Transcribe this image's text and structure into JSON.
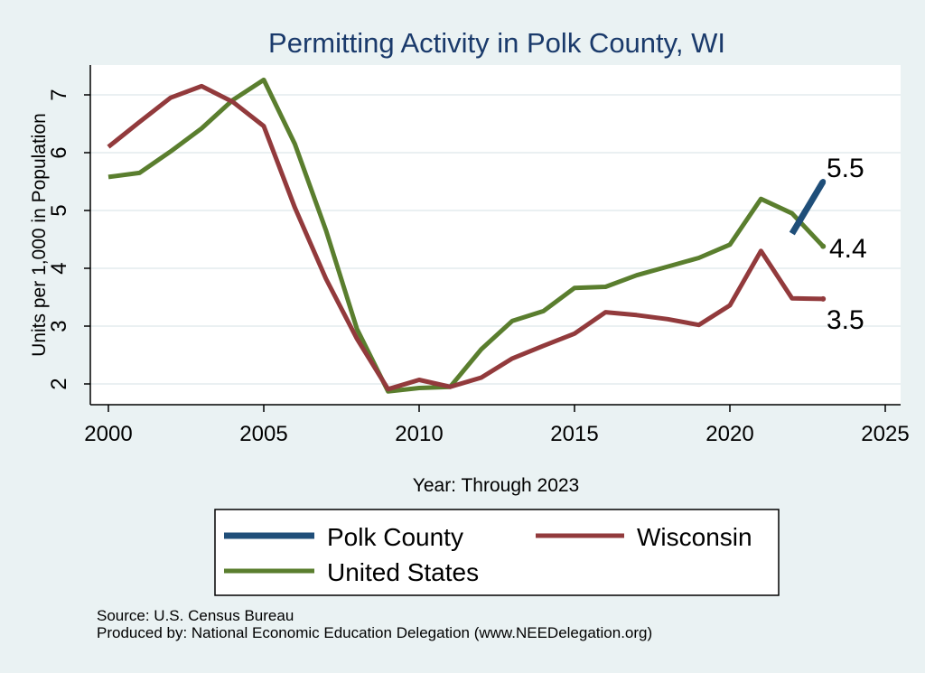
{
  "chart_data": {
    "type": "line",
    "title": "Permitting Activity in Polk County, WI",
    "xlabel": "Year: Through 2023",
    "ylabel": "Units per 1,000 in Population",
    "xlim": [
      2000,
      2025
    ],
    "ylim": [
      2,
      7
    ],
    "x_ticks": [
      2000,
      2005,
      2010,
      2015,
      2020,
      2025
    ],
    "y_ticks": [
      2,
      3,
      4,
      5,
      6,
      7
    ],
    "grid": true,
    "legend_position": "bottom",
    "series": [
      {
        "name": "Polk County",
        "color": "#1f4e79",
        "x": [
          2022,
          2023
        ],
        "values": [
          4.6,
          5.5
        ]
      },
      {
        "name": "Wisconsin",
        "color": "#923a3c",
        "x": [
          2000,
          2001,
          2002,
          2003,
          2004,
          2005,
          2006,
          2007,
          2008,
          2009,
          2010,
          2011,
          2012,
          2013,
          2014,
          2015,
          2016,
          2017,
          2018,
          2019,
          2020,
          2021,
          2022,
          2023
        ],
        "values": [
          6.1,
          6.53,
          6.95,
          7.15,
          6.88,
          6.46,
          5.05,
          3.82,
          2.78,
          1.91,
          2.07,
          1.95,
          2.11,
          2.44,
          2.66,
          2.87,
          3.24,
          3.19,
          3.12,
          3.02,
          3.36,
          4.3,
          3.48,
          3.47
        ]
      },
      {
        "name": "United States",
        "color": "#5a7e2e",
        "x": [
          2000,
          2001,
          2002,
          2003,
          2004,
          2005,
          2006,
          2007,
          2008,
          2009,
          2010,
          2011,
          2012,
          2013,
          2014,
          2015,
          2016,
          2017,
          2018,
          2019,
          2020,
          2021,
          2022,
          2023
        ],
        "values": [
          5.58,
          5.65,
          6.02,
          6.42,
          6.91,
          7.26,
          6.15,
          4.66,
          2.95,
          1.87,
          1.93,
          1.95,
          2.6,
          3.09,
          3.26,
          3.66,
          3.68,
          3.88,
          4.03,
          4.18,
          4.41,
          5.2,
          4.95,
          4.38
        ]
      }
    ],
    "end_labels": [
      "5.5",
      "4.4",
      "3.5"
    ]
  },
  "notes": {
    "source": "Source: U.S. Census Bureau",
    "produced_by": "Produced by: National Economic Education Delegation (www.NEEDelegation.org)"
  }
}
